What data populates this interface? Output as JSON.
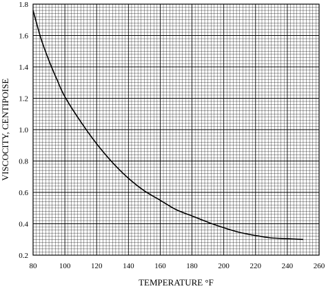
{
  "chart_data": {
    "type": "line",
    "title": "",
    "xlabel": "TEMPERATURE °F",
    "ylabel": "VISCOCITY, CENTIPOISE",
    "xlim": [
      80,
      260
    ],
    "ylim": [
      0.2,
      1.8
    ],
    "x_ticks": [
      80,
      100,
      120,
      140,
      160,
      180,
      200,
      220,
      240,
      260
    ],
    "y_ticks": [
      "0.2",
      "0.4",
      "0.6",
      "0.8",
      "1.0",
      "1.2",
      "1.4",
      "1.6",
      "1.8"
    ],
    "grid": true,
    "series": [
      {
        "x": [
          80,
          85,
          90,
          95,
          100,
          110,
          120,
          130,
          140,
          150,
          160,
          170,
          180,
          190,
          200,
          210,
          220,
          230,
          240,
          250
        ],
        "y": [
          1.76,
          1.58,
          1.44,
          1.32,
          1.21,
          1.05,
          0.91,
          0.79,
          0.69,
          0.61,
          0.55,
          0.49,
          0.45,
          0.41,
          0.375,
          0.345,
          0.325,
          0.31,
          0.305,
          0.3
        ]
      }
    ]
  }
}
